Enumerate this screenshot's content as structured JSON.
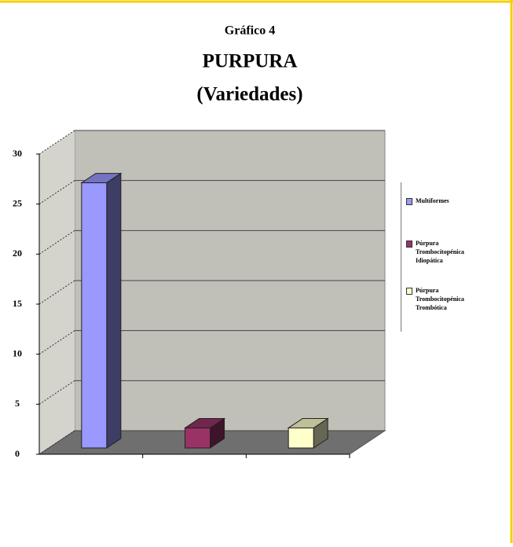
{
  "chart_data": {
    "type": "bar3d",
    "title": "Gráfico 4",
    "subtitle": "PURPURA",
    "subtitle2": "(Variedades)",
    "categories": [
      null,
      null,
      null
    ],
    "series": [
      {
        "name": "Multiformes",
        "color": "#9999ff",
        "values": [
          26.5,
          null,
          null
        ]
      },
      {
        "name": "Púrpura Trombocitopénica Idiopática",
        "color": "#993366",
        "values": [
          null,
          2,
          null
        ]
      },
      {
        "name": "Púrpura Trombocitopénica Trombótica",
        "color": "#ffffcc",
        "values": [
          null,
          null,
          2
        ]
      }
    ],
    "ylim": [
      0,
      30
    ],
    "yticks": [
      0,
      5,
      10,
      15,
      20,
      25,
      30
    ],
    "grid": true,
    "legend": "right"
  }
}
